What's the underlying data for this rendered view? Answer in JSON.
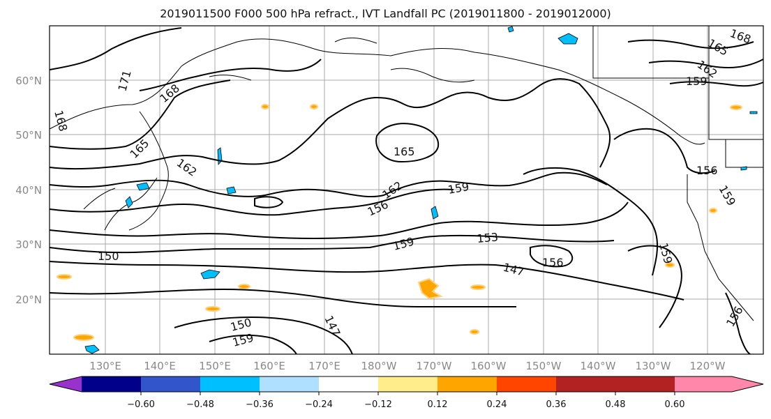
{
  "title": "2019011500 F000 500 hPa refract., IVT Landfall PC (2019011800 - 2019012000)",
  "lat_labels": [
    "60°N",
    "50°N",
    "40°N",
    "30°N",
    "20°N"
  ],
  "lon_labels": [
    "130°E",
    "140°E",
    "150°E",
    "160°E",
    "170°E",
    "180°W",
    "170°W",
    "160°W",
    "150°W",
    "140°W",
    "130°W",
    "120°W"
  ],
  "colorbar": {
    "colors": [
      "#9932cc",
      "#00008b",
      "#3355cc",
      "#00bfff",
      "#b0e0ff",
      "#ffffff",
      "#ffec8b",
      "#ffa500",
      "#ff4500",
      "#b22222",
      "#ff88aa"
    ],
    "tick_labels": [
      "−0.60",
      "−0.48",
      "−0.36",
      "−0.24",
      "−0.12",
      "0.12",
      "0.24",
      "0.36",
      "0.48",
      "0.60"
    ]
  },
  "contour_labels": [
    "171",
    "168",
    "168",
    "165",
    "162",
    "165",
    "162",
    "159",
    "156",
    "159",
    "150",
    "153",
    "147",
    "156",
    "159",
    "156",
    "159",
    "150",
    "159",
    "147",
    "156",
    "159",
    "162",
    "165",
    "168"
  ]
}
